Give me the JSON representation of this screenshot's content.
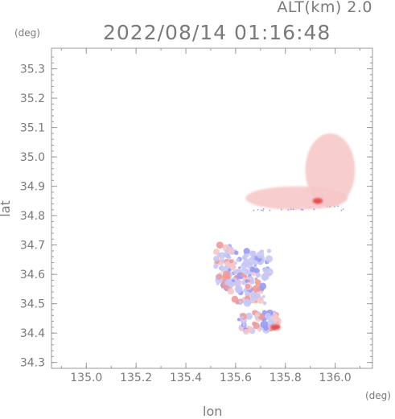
{
  "header": {
    "altitude_label": "ALT(km) 2.0",
    "timestamp": "2022/08/14 01:16:48"
  },
  "chart_data": {
    "type": "heatmap",
    "title": "2022/08/14 01:16:48",
    "subtitle": "ALT(km) 2.0",
    "xlabel": "lon",
    "ylabel": "lat",
    "x_unit": "(deg)",
    "y_unit": "(deg)",
    "xlim": [
      134.86,
      136.15
    ],
    "ylim": [
      34.28,
      35.37
    ],
    "x_ticks": [
      135.0,
      135.2,
      135.4,
      135.6,
      135.8,
      136.0
    ],
    "x_tick_labels": [
      "135.0",
      "135.2",
      "135.4",
      "135.6",
      "135.8",
      "136.0"
    ],
    "y_ticks": [
      34.3,
      34.4,
      34.5,
      34.6,
      34.7,
      34.8,
      34.9,
      35.0,
      35.1,
      35.2,
      35.3
    ],
    "y_tick_labels": [
      "34.3",
      "34.4",
      "34.5",
      "34.6",
      "34.7",
      "34.8",
      "34.9",
      "35.0",
      "35.1",
      "35.2",
      "35.3"
    ],
    "colors": {
      "positive_light": "#f6c8c8",
      "positive_mid": "#ef9a9a",
      "positive_strong": "#e04848",
      "negative_light": "#c8c8f6",
      "negative_mid": "#9a9aef",
      "axis": "#9a9a9a",
      "text": "#7a7a7a"
    },
    "echo_regions": [
      {
        "lon_min": 135.88,
        "lon_max": 136.08,
        "lat_min": 34.83,
        "lat_max": 35.08,
        "polarity": "positive",
        "intensity": "light"
      },
      {
        "lon_min": 135.64,
        "lon_max": 136.05,
        "lat_min": 34.82,
        "lat_max": 34.9,
        "polarity": "positive",
        "intensity": "light"
      },
      {
        "lon_min": 135.91,
        "lon_max": 135.95,
        "lat_min": 34.84,
        "lat_max": 34.86,
        "polarity": "positive",
        "intensity": "strong"
      },
      {
        "lon_min": 135.52,
        "lon_max": 135.62,
        "lat_min": 34.55,
        "lat_max": 34.7,
        "polarity": "mixed",
        "intensity": "mid"
      },
      {
        "lon_min": 135.63,
        "lon_max": 135.74,
        "lat_min": 34.59,
        "lat_max": 34.68,
        "polarity": "negative",
        "intensity": "light"
      },
      {
        "lon_min": 135.58,
        "lon_max": 135.72,
        "lat_min": 34.5,
        "lat_max": 34.6,
        "polarity": "mixed",
        "intensity": "mid"
      },
      {
        "lon_min": 135.61,
        "lon_max": 135.77,
        "lat_min": 34.4,
        "lat_max": 34.47,
        "polarity": "mixed",
        "intensity": "mid"
      },
      {
        "lon_min": 135.74,
        "lon_max": 135.78,
        "lat_min": 34.41,
        "lat_max": 34.43,
        "polarity": "positive",
        "intensity": "strong"
      }
    ]
  }
}
